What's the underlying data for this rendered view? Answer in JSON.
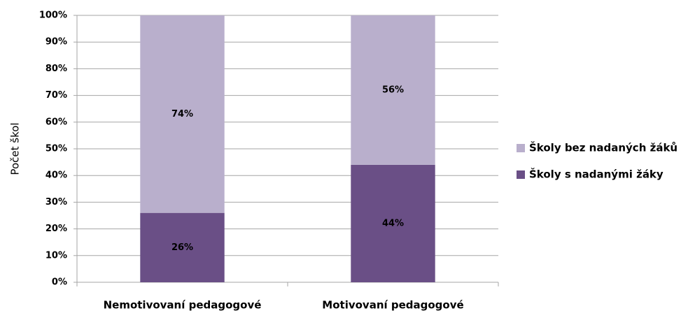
{
  "chart_data": {
    "type": "stacked_bar",
    "ylabel": "Počet škol",
    "categories": [
      "Nemotivovaní pedagogové",
      "Motivovaní pedagogové"
    ],
    "series": [
      {
        "name": "Školy  s  nadanými žáky",
        "color": "#6a4f86",
        "values": [
          26,
          44
        ],
        "value_labels": [
          "26%",
          "44%"
        ]
      },
      {
        "name": "Školy bez nadaných žáků",
        "color": "#b9afcc",
        "values": [
          74,
          56
        ],
        "value_labels": [
          "74%",
          "56%"
        ]
      }
    ],
    "ylim": [
      0,
      100
    ],
    "yticks": [
      {
        "value": 0,
        "label": "0%"
      },
      {
        "value": 10,
        "label": "10%"
      },
      {
        "value": 20,
        "label": "20%"
      },
      {
        "value": 30,
        "label": "30%"
      },
      {
        "value": 40,
        "label": "40%"
      },
      {
        "value": 50,
        "label": "50%"
      },
      {
        "value": 60,
        "label": "60%"
      },
      {
        "value": 70,
        "label": "70%"
      },
      {
        "value": 80,
        "label": "80%"
      },
      {
        "value": 90,
        "label": "90%"
      },
      {
        "value": 100,
        "label": "100%"
      }
    ],
    "grid": true,
    "legend": "right"
  }
}
